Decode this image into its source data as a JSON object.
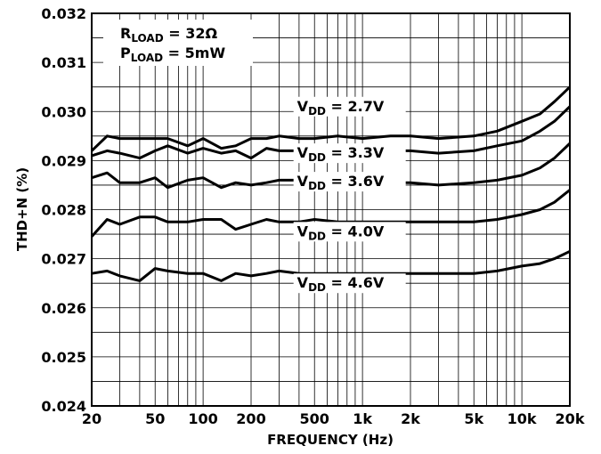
{
  "chart_data": {
    "type": "line",
    "title": "",
    "xlabel": "FREQUENCY (Hz)",
    "ylabel": "THD+N (%)",
    "x_scale": "log",
    "xlim": [
      20,
      20000
    ],
    "ylim": [
      0.024,
      0.032
    ],
    "grid": true,
    "x_ticks": [
      20,
      50,
      100,
      200,
      500,
      1000,
      2000,
      5000,
      10000,
      20000
    ],
    "x_tick_labels": [
      "20",
      "50",
      "100",
      "200",
      "500",
      "1k",
      "2k",
      "5k",
      "10k",
      "20k"
    ],
    "y_ticks": [
      0.024,
      0.025,
      0.026,
      0.027,
      0.028,
      0.029,
      0.03,
      0.031,
      0.032
    ],
    "y_tick_labels": [
      "0.024",
      "0.025",
      "0.026",
      "0.027",
      "0.028",
      "0.029",
      "0.030",
      "0.031",
      "0.032"
    ],
    "conditions": [
      {
        "main": "R",
        "sub": "LOAD",
        "rest": " = 32Ω"
      },
      {
        "main": "P",
        "sub": "LOAD",
        "rest": " = 5mW"
      }
    ],
    "series": [
      {
        "label": {
          "main": "V",
          "sub": "DD",
          "rest": " = 2.7V"
        },
        "label_anchor": [
          420,
          0.0299
        ],
        "points": [
          [
            20,
            0.0292
          ],
          [
            25,
            0.0295
          ],
          [
            30,
            0.02945
          ],
          [
            40,
            0.02945
          ],
          [
            50,
            0.02945
          ],
          [
            60,
            0.02945
          ],
          [
            80,
            0.0293
          ],
          [
            100,
            0.02945
          ],
          [
            130,
            0.02925
          ],
          [
            160,
            0.0293
          ],
          [
            200,
            0.02945
          ],
          [
            250,
            0.02945
          ],
          [
            300,
            0.0295
          ],
          [
            400,
            0.02945
          ],
          [
            500,
            0.02945
          ],
          [
            700,
            0.0295
          ],
          [
            1000,
            0.02945
          ],
          [
            1500,
            0.0295
          ],
          [
            2000,
            0.0295
          ],
          [
            3000,
            0.02945
          ],
          [
            5000,
            0.0295
          ],
          [
            7000,
            0.0296
          ],
          [
            10000,
            0.0298
          ],
          [
            13000,
            0.02995
          ],
          [
            16000,
            0.0302
          ],
          [
            20000,
            0.0305
          ]
        ]
      },
      {
        "label": {
          "main": "V",
          "sub": "DD",
          "rest": " = 3.3V"
        },
        "label_anchor": [
          420,
          0.02895
        ],
        "points": [
          [
            20,
            0.0291
          ],
          [
            25,
            0.0292
          ],
          [
            30,
            0.02915
          ],
          [
            40,
            0.02905
          ],
          [
            50,
            0.0292
          ],
          [
            60,
            0.0293
          ],
          [
            80,
            0.02915
          ],
          [
            100,
            0.02925
          ],
          [
            130,
            0.02915
          ],
          [
            160,
            0.0292
          ],
          [
            200,
            0.02905
          ],
          [
            250,
            0.02925
          ],
          [
            300,
            0.0292
          ],
          [
            400,
            0.0292
          ],
          [
            500,
            0.02925
          ],
          [
            700,
            0.02915
          ],
          [
            1000,
            0.0292
          ],
          [
            1500,
            0.0292
          ],
          [
            2000,
            0.0292
          ],
          [
            3000,
            0.02915
          ],
          [
            5000,
            0.0292
          ],
          [
            7000,
            0.0293
          ],
          [
            10000,
            0.0294
          ],
          [
            13000,
            0.0296
          ],
          [
            16000,
            0.0298
          ],
          [
            20000,
            0.0301
          ]
        ]
      },
      {
        "label": {
          "main": "V",
          "sub": "DD",
          "rest": " = 3.6V"
        },
        "label_anchor": [
          420,
          0.02837
        ],
        "points": [
          [
            20,
            0.02865
          ],
          [
            25,
            0.02875
          ],
          [
            30,
            0.02855
          ],
          [
            40,
            0.02855
          ],
          [
            50,
            0.02865
          ],
          [
            60,
            0.02845
          ],
          [
            80,
            0.0286
          ],
          [
            100,
            0.02865
          ],
          [
            130,
            0.02845
          ],
          [
            160,
            0.02855
          ],
          [
            200,
            0.0285
          ],
          [
            250,
            0.02855
          ],
          [
            300,
            0.0286
          ],
          [
            400,
            0.0286
          ],
          [
            500,
            0.0286
          ],
          [
            700,
            0.0286
          ],
          [
            1000,
            0.02855
          ],
          [
            1500,
            0.02855
          ],
          [
            2000,
            0.02855
          ],
          [
            3000,
            0.0285
          ],
          [
            5000,
            0.02855
          ],
          [
            7000,
            0.0286
          ],
          [
            10000,
            0.0287
          ],
          [
            13000,
            0.02885
          ],
          [
            16000,
            0.02905
          ],
          [
            20000,
            0.02935
          ]
        ]
      },
      {
        "label": {
          "main": "V",
          "sub": "DD",
          "rest": " = 4.0V"
        },
        "label_anchor": [
          420,
          0.02735
        ],
        "points": [
          [
            20,
            0.02745
          ],
          [
            25,
            0.0278
          ],
          [
            30,
            0.0277
          ],
          [
            40,
            0.02785
          ],
          [
            50,
            0.02785
          ],
          [
            60,
            0.02775
          ],
          [
            80,
            0.02775
          ],
          [
            100,
            0.0278
          ],
          [
            130,
            0.0278
          ],
          [
            160,
            0.0276
          ],
          [
            200,
            0.0277
          ],
          [
            250,
            0.0278
          ],
          [
            300,
            0.02775
          ],
          [
            400,
            0.02775
          ],
          [
            500,
            0.0278
          ],
          [
            700,
            0.02775
          ],
          [
            1000,
            0.02775
          ],
          [
            1500,
            0.02775
          ],
          [
            2000,
            0.02775
          ],
          [
            3000,
            0.02775
          ],
          [
            5000,
            0.02775
          ],
          [
            7000,
            0.0278
          ],
          [
            10000,
            0.0279
          ],
          [
            13000,
            0.028
          ],
          [
            16000,
            0.02815
          ],
          [
            20000,
            0.0284
          ]
        ]
      },
      {
        "label": {
          "main": "V",
          "sub": "DD",
          "rest": " = 4.6V"
        },
        "label_anchor": [
          420,
          0.0263
        ],
        "points": [
          [
            20,
            0.0267
          ],
          [
            25,
            0.02675
          ],
          [
            30,
            0.02665
          ],
          [
            40,
            0.02655
          ],
          [
            50,
            0.0268
          ],
          [
            60,
            0.02675
          ],
          [
            80,
            0.0267
          ],
          [
            100,
            0.0267
          ],
          [
            130,
            0.02655
          ],
          [
            160,
            0.0267
          ],
          [
            200,
            0.02665
          ],
          [
            250,
            0.0267
          ],
          [
            300,
            0.02675
          ],
          [
            400,
            0.0267
          ],
          [
            500,
            0.0267
          ],
          [
            700,
            0.0267
          ],
          [
            1000,
            0.0267
          ],
          [
            1500,
            0.0267
          ],
          [
            2000,
            0.0267
          ],
          [
            3000,
            0.0267
          ],
          [
            5000,
            0.0267
          ],
          [
            7000,
            0.02675
          ],
          [
            10000,
            0.02685
          ],
          [
            13000,
            0.0269
          ],
          [
            16000,
            0.027
          ],
          [
            20000,
            0.02715
          ]
        ]
      }
    ]
  }
}
